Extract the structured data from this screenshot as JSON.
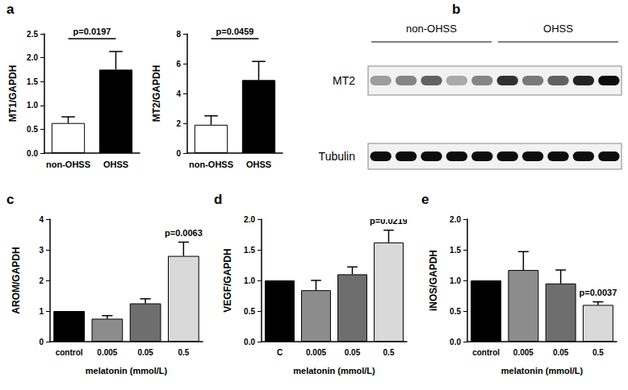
{
  "chart_data": [
    {
      "type": "bar",
      "panel": "a",
      "ylabel": "MT1/GAPDH",
      "categories": [
        "non-OHSS",
        "OHSS"
      ],
      "values": [
        0.63,
        1.75
      ],
      "errors": [
        0.13,
        0.38
      ],
      "colors": [
        "#ffffff",
        "#000000"
      ],
      "ylim": [
        0,
        2.5
      ],
      "yticks": [
        {
          "value": 0,
          "label": "0.0"
        },
        0.5,
        {
          "value": 1,
          "label": "1.0"
        },
        1.5,
        {
          "value": 2,
          "label": "2.0"
        },
        2.5
      ],
      "annotation": "p=0.0197",
      "grid": false
    },
    {
      "type": "bar",
      "ylabel": "MT2/GAPDH",
      "categories": [
        "non-OHSS",
        "OHSS"
      ],
      "values": [
        1.9,
        4.9
      ],
      "errors": [
        0.6,
        1.25
      ],
      "colors": [
        "#ffffff",
        "#000000"
      ],
      "ylim": [
        0,
        8
      ],
      "yticks": [
        0,
        2,
        4,
        6,
        8
      ],
      "annotation": "p=0.0459",
      "grid": false
    },
    {
      "type": "bar",
      "panel": "c",
      "ylabel": "AROM/GAPDH",
      "xlabel": "melatonin (mmol/L)",
      "categories": [
        "control",
        "0.005",
        "0.05",
        "0.5"
      ],
      "values": [
        1.0,
        0.75,
        1.25,
        2.8
      ],
      "errors": [
        0,
        0.1,
        0.15,
        0.45
      ],
      "colors": [
        "#000000",
        "#8c8c8c",
        "#6e6e6e",
        "#d9d9d9"
      ],
      "ylim": [
        0,
        4
      ],
      "yticks": [
        0,
        1,
        2,
        3,
        4
      ],
      "annotation": "p=0.0063",
      "grid": false
    },
    {
      "type": "bar",
      "panel": "d",
      "ylabel": "VEGF/GAPDH",
      "xlabel": "melatonin (mmol/L)",
      "categories": [
        "C",
        "0.005",
        "0.05",
        "0.5"
      ],
      "values": [
        1.0,
        0.84,
        1.1,
        1.62
      ],
      "errors": [
        0,
        0.16,
        0.12,
        0.2
      ],
      "colors": [
        "#000000",
        "#8c8c8c",
        "#6e6e6e",
        "#d9d9d9"
      ],
      "ylim": [
        0,
        2
      ],
      "yticks": [
        {
          "value": 0,
          "label": "0.0"
        },
        0.5,
        {
          "value": 1,
          "label": "1.0"
        },
        1.5,
        {
          "value": 2,
          "label": "2.0"
        }
      ],
      "annotation": "p=0.0219",
      "grid": false
    },
    {
      "type": "bar",
      "panel": "e",
      "ylabel": "iNOS/GAPDH",
      "xlabel": "melatonin (mmol/L)",
      "categories": [
        "control",
        "0.005",
        "0.05",
        "0.5"
      ],
      "values": [
        1.0,
        1.17,
        0.95,
        0.6
      ],
      "errors": [
        0,
        0.3,
        0.22,
        0.05
      ],
      "colors": [
        "#000000",
        "#8c8c8c",
        "#6e6e6e",
        "#d9d9d9"
      ],
      "ylim": [
        0,
        2
      ],
      "yticks": [
        {
          "value": 0,
          "label": "0.0"
        },
        0.5,
        {
          "value": 1,
          "label": "1.0"
        },
        1.5,
        {
          "value": 2,
          "label": "2.0"
        }
      ],
      "annotation": "p=0.0037",
      "grid": false
    }
  ],
  "blot": {
    "panel": "b",
    "groups": [
      {
        "label": "non-OHSS",
        "lanes": 5
      },
      {
        "label": "OHSS",
        "lanes": 5
      }
    ],
    "rows": [
      {
        "label": "MT2",
        "bands": [
          0.35,
          0.45,
          0.6,
          0.3,
          0.45,
          0.8,
          0.5,
          0.6,
          0.85,
          0.95
        ]
      },
      {
        "label": "Tubulin",
        "bands": [
          0.95,
          0.95,
          0.95,
          0.95,
          0.95,
          0.95,
          0.95,
          0.95,
          0.95,
          0.95
        ]
      }
    ]
  }
}
